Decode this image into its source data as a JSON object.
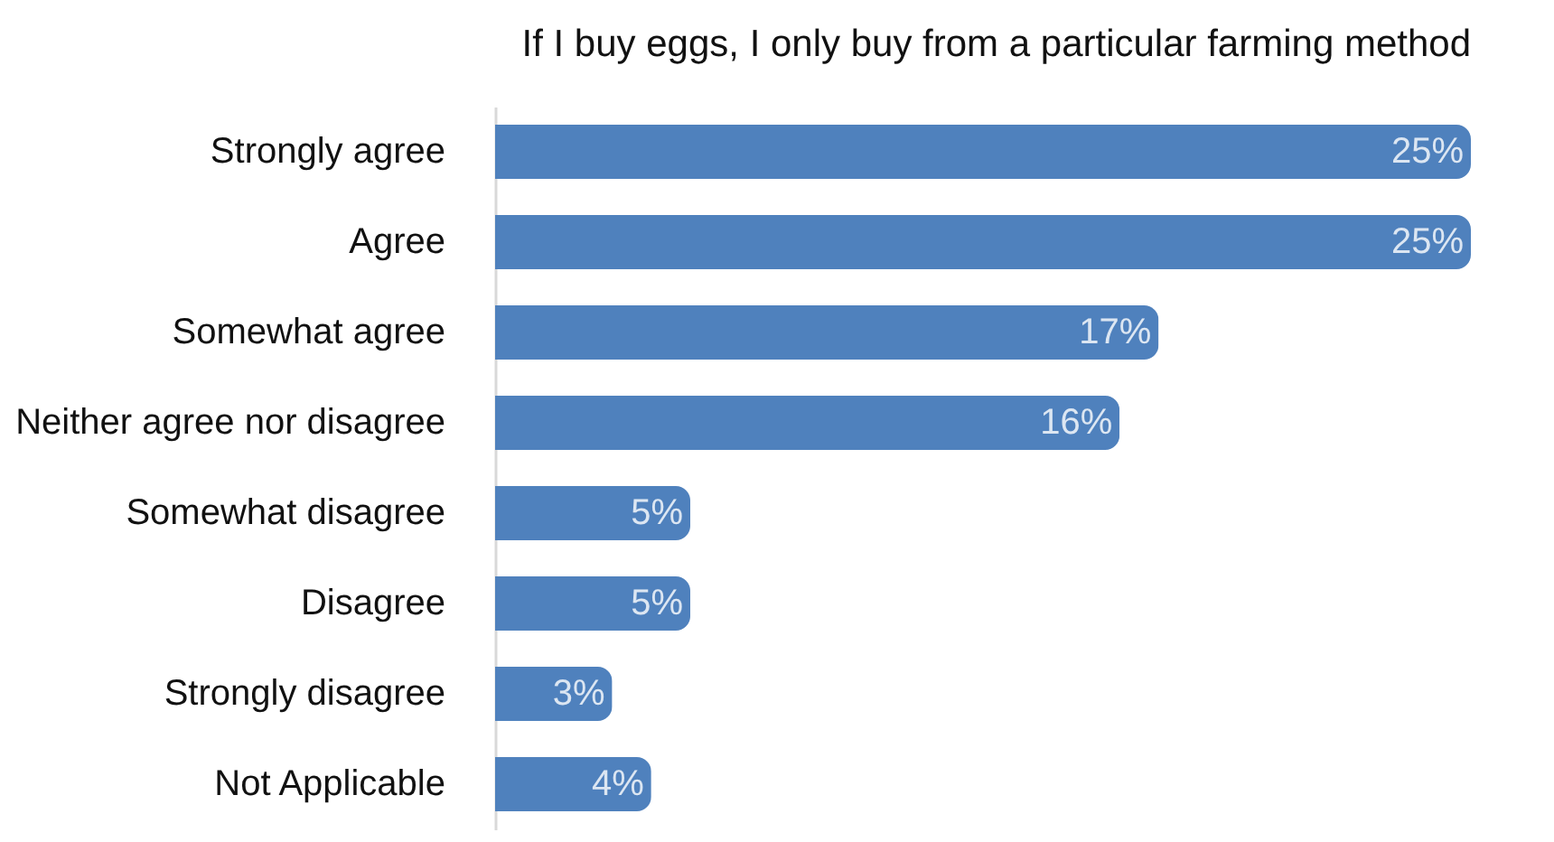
{
  "chart_data": {
    "type": "bar",
    "orientation": "horizontal",
    "title": "If I buy eggs, I only buy from a particular farming method",
    "categories": [
      "Strongly agree",
      "Agree",
      "Somewhat agree",
      "Neither agree nor disagree",
      "Somewhat disagree",
      "Disagree",
      "Strongly disagree",
      "Not Applicable"
    ],
    "values": [
      25,
      25,
      17,
      16,
      5,
      5,
      3,
      4
    ],
    "value_labels": [
      "25%",
      "25%",
      "17%",
      "16%",
      "5%",
      "5%",
      "3%",
      "4%"
    ],
    "color": "#4f81bd",
    "grid": false
  }
}
